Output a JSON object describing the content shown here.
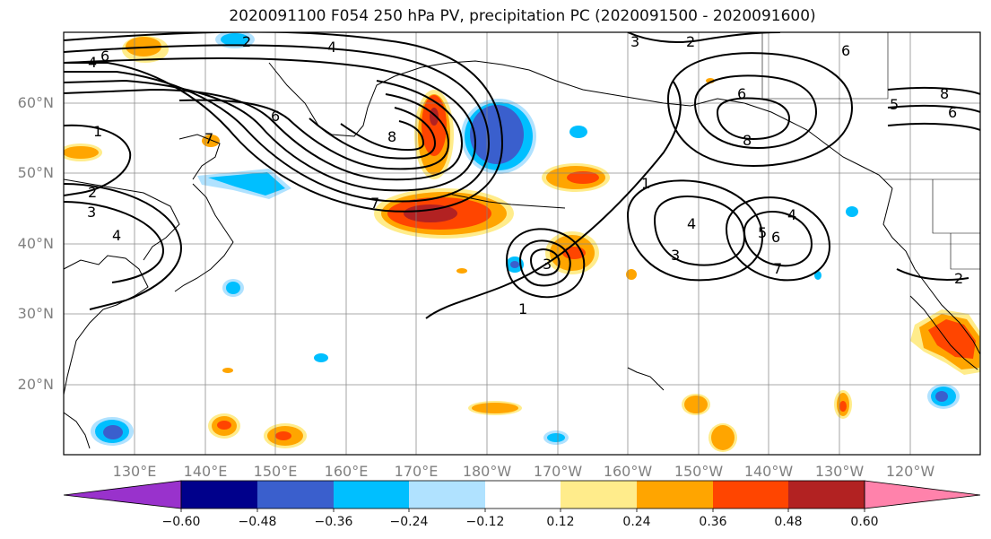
{
  "title": "2020091100 F054 250 hPa PV, precipitation PC (2020091500 - 2020091600)",
  "map": {
    "lat_labels": [
      "60°N",
      "50°N",
      "40°N",
      "30°N",
      "20°N"
    ],
    "lon_labels": [
      "130°E",
      "140°E",
      "150°E",
      "160°E",
      "170°E",
      "180°W",
      "170°W",
      "160°W",
      "150°W",
      "140°W",
      "130°W",
      "120°W"
    ],
    "contour_labels": [
      "6",
      "4",
      "2",
      "1",
      "3",
      "8",
      "7",
      "5"
    ]
  },
  "colorbar": {
    "ticks": [
      "−0.60",
      "−0.48",
      "−0.36",
      "−0.24",
      "−0.12",
      "0.12",
      "0.24",
      "0.36",
      "0.48",
      "0.60"
    ],
    "colors": [
      "#9932cc",
      "#00008b",
      "#3a5fcd",
      "#00bfff",
      "#b0e2ff",
      "#ffffff",
      "#ffec8b",
      "#ffa500",
      "#ff4500",
      "#b22222",
      "#ff82ab"
    ]
  },
  "colors": {
    "contour": "#000000",
    "grid": "#808080",
    "axis_text": "#808080"
  }
}
